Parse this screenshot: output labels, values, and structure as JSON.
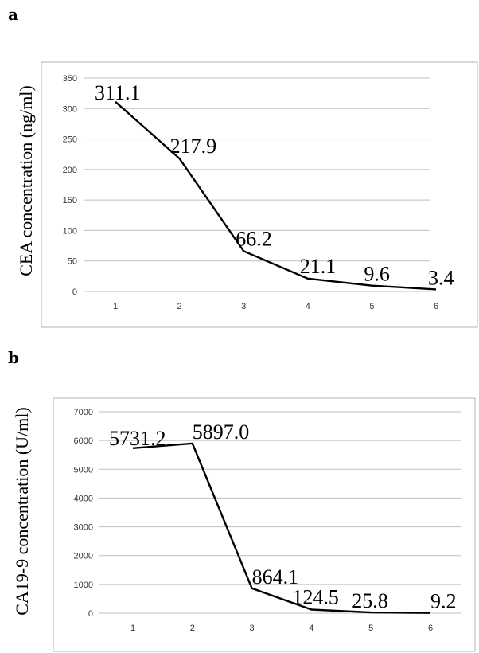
{
  "panels": [
    "a",
    "b"
  ],
  "chart_data": [
    {
      "type": "line",
      "ylabel": "CEA concentration (ng/ml)",
      "xlabel": "",
      "categories": [
        "1",
        "2",
        "3",
        "4",
        "5",
        "6"
      ],
      "values": [
        311.1,
        217.9,
        66.2,
        21.1,
        9.6,
        3.4
      ],
      "data_labels": [
        "311.1",
        "217.9",
        "66.2",
        "21.1",
        "9.6",
        "3.4"
      ],
      "ylim": [
        0,
        350
      ],
      "yticks": [
        0,
        50,
        100,
        150,
        200,
        250,
        300,
        350
      ],
      "grid": true,
      "legend": "none"
    },
    {
      "type": "line",
      "ylabel": "CA19-9 concentration (U/ml)",
      "xlabel": "",
      "categories": [
        "1",
        "2",
        "3",
        "4",
        "5",
        "6"
      ],
      "values": [
        5731.2,
        5897.0,
        864.1,
        124.5,
        25.8,
        9.2
      ],
      "data_labels": [
        "5731.2",
        "5897.0",
        "864.1",
        "124.5",
        "25.8",
        "9.2"
      ],
      "ylim": [
        0,
        7000
      ],
      "yticks": [
        0,
        1000,
        2000,
        3000,
        4000,
        5000,
        6000,
        7000
      ],
      "grid": true,
      "legend": "none"
    }
  ]
}
